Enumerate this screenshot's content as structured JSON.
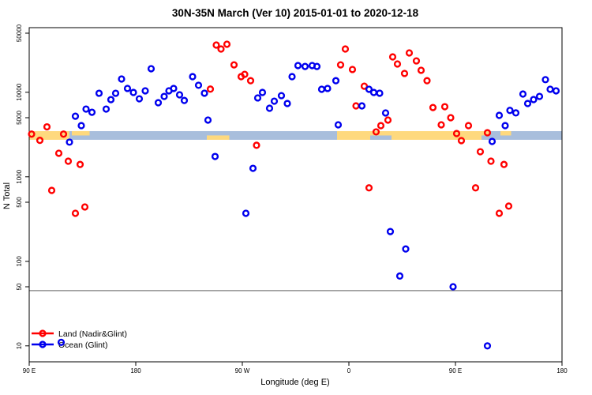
{
  "chart_data": {
    "type": "scatter",
    "title": "30N-35N March (Ver 10)   2015-01-01 to 2020-12-18",
    "xlabel": "Longitude (deg E)",
    "ylabel": "N Total",
    "x_axis": {
      "min": 90,
      "max": 540,
      "note": "longitude axis wraps eastward from 90E to 180",
      "ticks": [
        {
          "value": 90,
          "label": "90 E"
        },
        {
          "value": 180,
          "label": "180"
        },
        {
          "value": 270,
          "label": "90 W"
        },
        {
          "value": 360,
          "label": "0"
        },
        {
          "value": 450,
          "label": "90 E"
        },
        {
          "value": 540,
          "label": "180"
        }
      ]
    },
    "y_axis": {
      "scale": "log",
      "min": 6.5,
      "max": 58000,
      "ticks": [
        {
          "value": 50000,
          "label": "50000"
        },
        {
          "value": 10000,
          "label": "10000"
        },
        {
          "value": 5000,
          "label": "5000"
        },
        {
          "value": 1000,
          "label": "1000"
        },
        {
          "value": 500,
          "label": "500"
        },
        {
          "value": 100,
          "label": "100"
        },
        {
          "value": 50,
          "label": "50"
        },
        {
          "value": 10,
          "label": "10"
        }
      ]
    },
    "reference_line": {
      "value": 45,
      "color": "#7f7f7f"
    },
    "map_band": {
      "value_top": 3470,
      "value_bottom": 2740,
      "land_color": "#fed97e",
      "ocean_color": "#a8bedc",
      "segments": [
        {
          "color": "land",
          "from": 90,
          "to": 124,
          "part": "full"
        },
        {
          "color": "ocean",
          "from": 124,
          "to": 240,
          "part": "full"
        },
        {
          "color": "ocean",
          "from": 240,
          "to": 259,
          "part": "top"
        },
        {
          "color": "land",
          "from": 240,
          "to": 259,
          "part": "bottom"
        },
        {
          "color": "ocean",
          "from": 259,
          "to": 350,
          "part": "full"
        },
        {
          "color": "land",
          "from": 350,
          "to": 479,
          "part": "full"
        },
        {
          "color": "ocean",
          "from": 378,
          "to": 396,
          "part": "bottom"
        },
        {
          "color": "ocean",
          "from": 472,
          "to": 479,
          "part": "bottom"
        },
        {
          "color": "ocean",
          "from": 479,
          "to": 540,
          "part": "full"
        },
        {
          "color": "land",
          "from": 488,
          "to": 497,
          "part": "top"
        },
        {
          "color": "land",
          "from": 126,
          "to": 141,
          "part": "top"
        }
      ]
    },
    "legend": {
      "position": "bottom-left"
    },
    "series": [
      {
        "name": "Land (Nadir&Glint)",
        "color": "#ff0000",
        "points": [
          [
            92,
            3200
          ],
          [
            99,
            2700
          ],
          [
            105,
            3900
          ],
          [
            109,
            690
          ],
          [
            115,
            1900
          ],
          [
            119,
            3200
          ],
          [
            123,
            1530
          ],
          [
            129,
            370
          ],
          [
            133,
            1400
          ],
          [
            137,
            440
          ],
          [
            243,
            10900
          ],
          [
            248,
            36200
          ],
          [
            252,
            32500
          ],
          [
            257,
            37000
          ],
          [
            263,
            21100
          ],
          [
            269,
            15300
          ],
          [
            272,
            16300
          ],
          [
            277,
            13700
          ],
          [
            282,
            2360
          ],
          [
            353,
            21100
          ],
          [
            357,
            32500
          ],
          [
            363,
            18600
          ],
          [
            366,
            6900
          ],
          [
            373,
            11800
          ],
          [
            377,
            740
          ],
          [
            383,
            3400
          ],
          [
            387,
            4030
          ],
          [
            393,
            4690
          ],
          [
            397,
            26200
          ],
          [
            401,
            21600
          ],
          [
            407,
            16700
          ],
          [
            411,
            29200
          ],
          [
            417,
            23500
          ],
          [
            421,
            18200
          ],
          [
            426,
            13700
          ],
          [
            431,
            6600
          ],
          [
            438,
            4120
          ],
          [
            441,
            6750
          ],
          [
            446,
            5000
          ],
          [
            451,
            3250
          ],
          [
            455,
            2680
          ],
          [
            461,
            4030
          ],
          [
            467,
            740
          ],
          [
            471,
            1980
          ],
          [
            477,
            3320
          ],
          [
            480,
            1530
          ],
          [
            487,
            370
          ],
          [
            491,
            1400
          ],
          [
            495,
            450
          ]
        ]
      },
      {
        "name": "Ocean (Glint)",
        "color": "#0000ee",
        "points": [
          [
            117,
            11
          ],
          [
            124,
            2570
          ],
          [
            129,
            5210
          ],
          [
            134,
            4030
          ],
          [
            138,
            6330
          ],
          [
            143,
            5800
          ],
          [
            149,
            9730
          ],
          [
            155,
            6330
          ],
          [
            159,
            8180
          ],
          [
            163,
            9730
          ],
          [
            168,
            14350
          ],
          [
            173,
            11100
          ],
          [
            178,
            9950
          ],
          [
            183,
            8370
          ],
          [
            188,
            10400
          ],
          [
            193,
            19000
          ],
          [
            199,
            7520
          ],
          [
            204,
            8930
          ],
          [
            208,
            10400
          ],
          [
            212,
            11100
          ],
          [
            217,
            9330
          ],
          [
            221,
            8000
          ],
          [
            228,
            15300
          ],
          [
            233,
            12100
          ],
          [
            238,
            9750
          ],
          [
            241,
            4690
          ],
          [
            247,
            1740
          ],
          [
            273,
            370
          ],
          [
            279,
            1260
          ],
          [
            283,
            8570
          ],
          [
            287,
            9950
          ],
          [
            293,
            6470
          ],
          [
            297,
            7850
          ],
          [
            303,
            9120
          ],
          [
            308,
            7360
          ],
          [
            312,
            15300
          ],
          [
            317,
            20700
          ],
          [
            323,
            20200
          ],
          [
            329,
            20700
          ],
          [
            333,
            20200
          ],
          [
            337,
            10850
          ],
          [
            342,
            11100
          ],
          [
            349,
            13700
          ],
          [
            351,
            4120
          ],
          [
            371,
            6900
          ],
          [
            377,
            10850
          ],
          [
            381,
            9950
          ],
          [
            386,
            9750
          ],
          [
            391,
            5690
          ],
          [
            395,
            225
          ],
          [
            403,
            67
          ],
          [
            408,
            140
          ],
          [
            448,
            50
          ],
          [
            477,
            10
          ],
          [
            481,
            2620
          ],
          [
            487,
            5330
          ],
          [
            492,
            4030
          ],
          [
            496,
            6100
          ],
          [
            501,
            5700
          ],
          [
            507,
            9530
          ],
          [
            511,
            7360
          ],
          [
            516,
            8200
          ],
          [
            521,
            8930
          ],
          [
            526,
            14100
          ],
          [
            530,
            10850
          ],
          [
            535,
            10400
          ]
        ]
      }
    ]
  }
}
